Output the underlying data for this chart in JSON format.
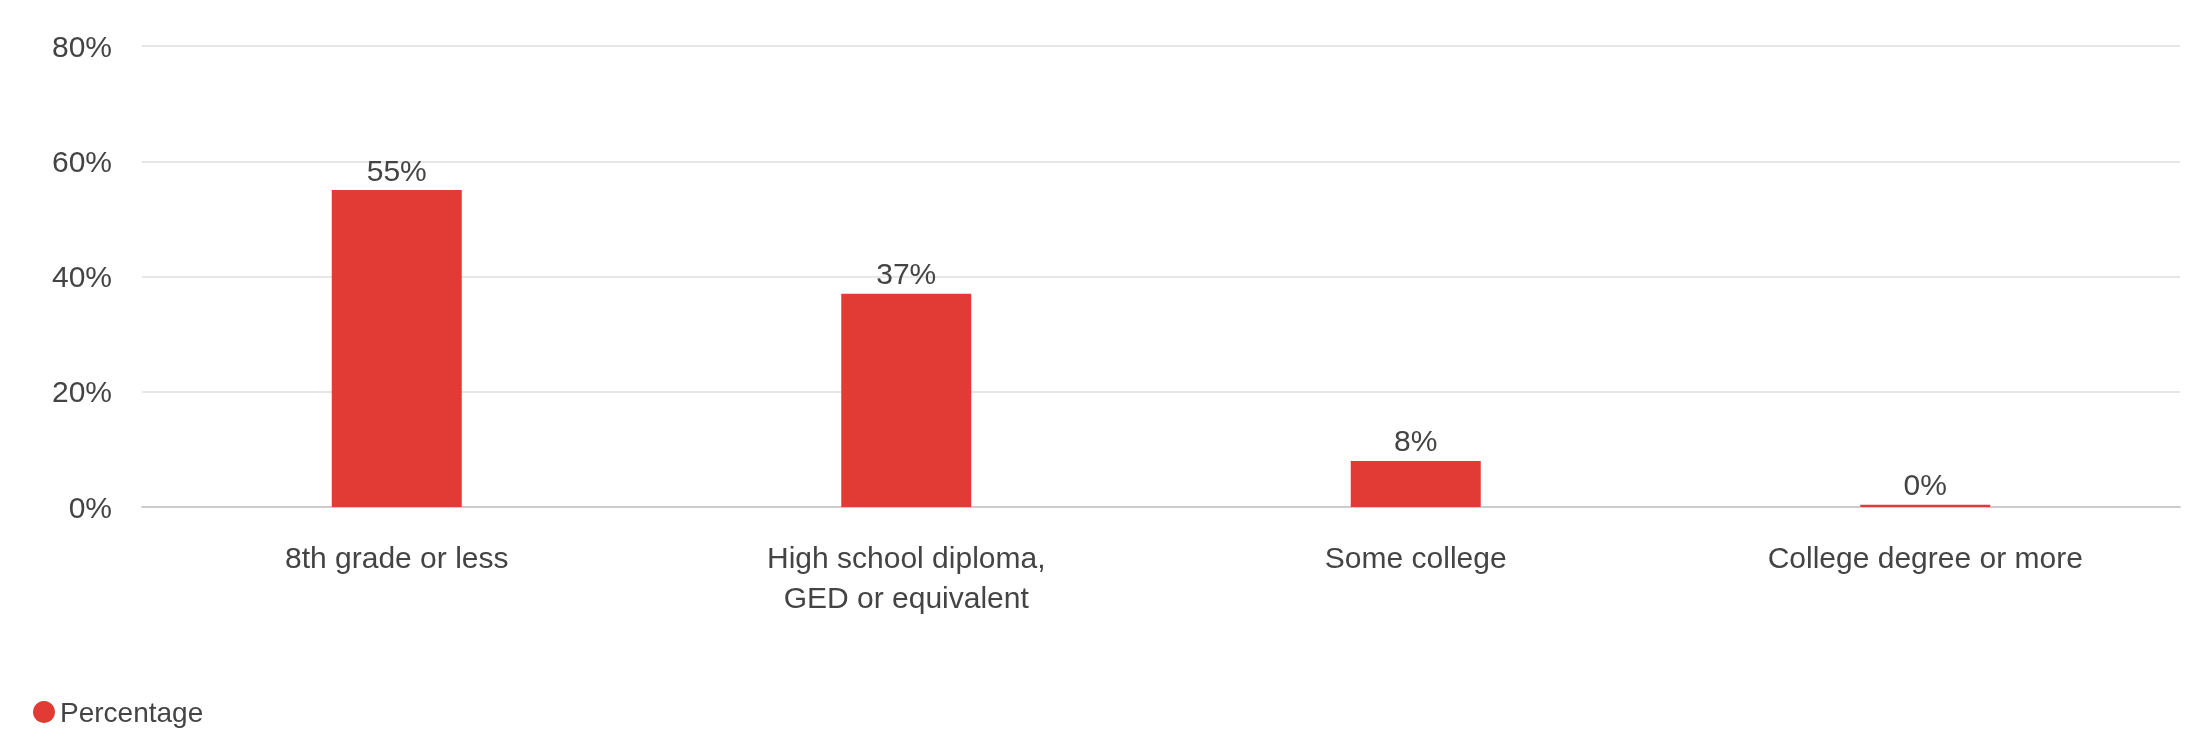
{
  "chart_data": {
    "type": "bar",
    "categories": [
      "8th grade or less",
      "High school diploma,\nGED or equivalent",
      "Some college",
      "College degree or more"
    ],
    "series": [
      {
        "name": "Percentage",
        "color": "#e23b36",
        "values": [
          55,
          37,
          8,
          0.4
        ],
        "value_labels": [
          "55%",
          "37%",
          "8%",
          "0%"
        ]
      }
    ],
    "ylim": [
      0,
      80
    ],
    "yticks": [
      {
        "value": 0,
        "label": "0%"
      },
      {
        "value": 20,
        "label": "20%"
      },
      {
        "value": 40,
        "label": "40%"
      },
      {
        "value": 60,
        "label": "60%"
      },
      {
        "value": 80,
        "label": "80%"
      }
    ],
    "grid": "y",
    "legend": "bottom left",
    "marker": "circle"
  }
}
